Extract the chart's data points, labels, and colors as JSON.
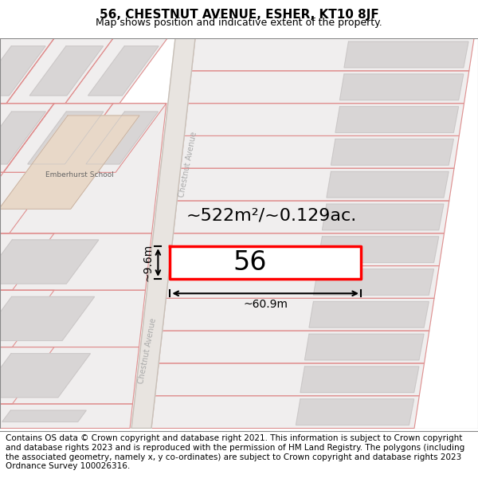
{
  "title": "56, CHESTNUT AVENUE, ESHER, KT10 8JF",
  "subtitle": "Map shows position and indicative extent of the property.",
  "footer": "Contains OS data © Crown copyright and database right 2021. This information is subject to Crown copyright and database rights 2023 and is reproduced with the permission of HM Land Registry. The polygons (including the associated geometry, namely x, y co-ordinates) are subject to Crown copyright and database rights 2023 Ordnance Survey 100026316.",
  "area_label": "~522m²/~0.129ac.",
  "width_label": "~60.9m",
  "height_label": "~9.6m",
  "number_label": "56",
  "bg_color": "#ffffff",
  "map_bg": "#f5f3f3",
  "parcel_fill": "#f0eeee",
  "parcel_edge": "#e09090",
  "building_fill": "#d8d5d5",
  "building_edge": "#c8c4c4",
  "road_fill": "#e8e4e0",
  "road_edge": "#c8c0b8",
  "school_bld_fill": "#e8d8c8",
  "plot_outline": "#ff0000",
  "plot_fill": "#ffffff",
  "dim_color": "#000000",
  "road_label_color": "#aaaaaa",
  "title_fontsize": 11,
  "subtitle_fontsize": 9,
  "footer_fontsize": 7.5,
  "area_fontsize": 16,
  "number_fontsize": 24,
  "dim_fontsize": 10,
  "label_fontsize": 7
}
